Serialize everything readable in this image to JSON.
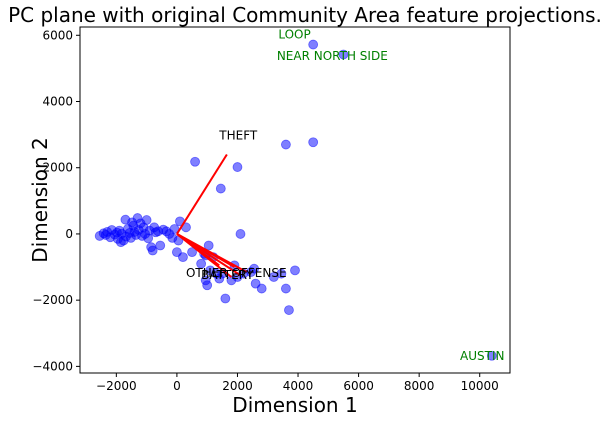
{
  "chart_data": {
    "type": "scatter",
    "title": "PC plane with original Community Area feature projections.",
    "xlabel": "Dimension 1",
    "ylabel": "Dimension 2",
    "xlim": [
      -3200,
      11000
    ],
    "ylim": [
      -4200,
      6250
    ],
    "xticks": [
      -2000,
      0,
      2000,
      4000,
      6000,
      8000,
      10000
    ],
    "yticks": [
      -4000,
      -2000,
      0,
      2000,
      4000,
      6000
    ],
    "grid": false,
    "point_color": "#0000ff",
    "vector_color": "#ff0000",
    "annotation_color": "#008000",
    "points": [
      [
        -2550,
        -60
      ],
      [
        -2420,
        20
      ],
      [
        -2350,
        -30
      ],
      [
        -2300,
        60
      ],
      [
        -2200,
        -100
      ],
      [
        -2150,
        120
      ],
      [
        -2050,
        -20
      ],
      [
        -1980,
        40
      ],
      [
        -1950,
        -150
      ],
      [
        -1900,
        100
      ],
      [
        -1850,
        -250
      ],
      [
        -1820,
        10
      ],
      [
        -1760,
        -200
      ],
      [
        -1700,
        430
      ],
      [
        -1680,
        -80
      ],
      [
        -1620,
        150
      ],
      [
        -1560,
        30
      ],
      [
        -1520,
        -120
      ],
      [
        -1480,
        350
      ],
      [
        -1440,
        250
      ],
      [
        -1400,
        60
      ],
      [
        -1350,
        -30
      ],
      [
        -1300,
        480
      ],
      [
        -1260,
        120
      ],
      [
        -1200,
        320
      ],
      [
        -1150,
        -60
      ],
      [
        -1100,
        200
      ],
      [
        -1050,
        0
      ],
      [
        -1000,
        420
      ],
      [
        -950,
        -130
      ],
      [
        -900,
        100
      ],
      [
        -850,
        -400
      ],
      [
        -800,
        -500
      ],
      [
        -750,
        200
      ],
      [
        -700,
        50
      ],
      [
        -620,
        80
      ],
      [
        -550,
        -350
      ],
      [
        -450,
        130
      ],
      [
        -350,
        80
      ],
      [
        -250,
        0
      ],
      [
        -150,
        -120
      ],
      [
        -80,
        150
      ],
      [
        0,
        -550
      ],
      [
        50,
        -200
      ],
      [
        100,
        380
      ],
      [
        200,
        -700
      ],
      [
        300,
        200
      ],
      [
        500,
        -550
      ],
      [
        800,
        -900
      ],
      [
        900,
        -600
      ],
      [
        950,
        -1400
      ],
      [
        1000,
        -1550
      ],
      [
        1100,
        -1100
      ],
      [
        1200,
        -700
      ],
      [
        1300,
        -1200
      ],
      [
        1400,
        -1350
      ],
      [
        1500,
        -1200
      ],
      [
        1600,
        -1950
      ],
      [
        1800,
        -1400
      ],
      [
        1900,
        -950
      ],
      [
        2000,
        -1300
      ],
      [
        2100,
        0
      ],
      [
        2200,
        -1200
      ],
      [
        2450,
        -1150
      ],
      [
        2550,
        -1050
      ],
      [
        2600,
        -1500
      ],
      [
        2800,
        -1650
      ],
      [
        3200,
        -1300
      ],
      [
        3450,
        -1200
      ],
      [
        3600,
        -1650
      ],
      [
        3700,
        -2300
      ],
      [
        3900,
        -1100
      ],
      [
        3600,
        2700
      ],
      [
        4500,
        2770
      ],
      [
        600,
        2180
      ],
      [
        2000,
        2020
      ],
      [
        1450,
        1370
      ],
      [
        4500,
        5720
      ],
      [
        5500,
        5420
      ],
      [
        10400,
        -3680
      ],
      [
        1050,
        -350
      ],
      [
        950,
        -650
      ]
    ],
    "feature_vectors": [
      {
        "label": "THEFT",
        "x": 1650,
        "y": 2400,
        "label_x": 1400,
        "label_y": 2850
      },
      {
        "label": "OTHER OFFENSE",
        "x": 2300,
        "y": -1150,
        "label_x": 300,
        "label_y": -1300
      },
      {
        "label": "BATTERY",
        "x": 1400,
        "y": -950,
        "label_x": 800,
        "label_y": -1360
      },
      {
        "label": "",
        "x": 1900,
        "y": -1000,
        "label_x": 0,
        "label_y": 0
      },
      {
        "label": "",
        "x": 2100,
        "y": -1250,
        "label_x": 0,
        "label_y": 0
      },
      {
        "label": "",
        "x": 1800,
        "y": -1300,
        "label_x": 0,
        "label_y": 0
      }
    ],
    "annotations": [
      {
        "text": "LOOP",
        "x": 3350,
        "y": 5900
      },
      {
        "text": "NEAR NORTH SIDE",
        "x": 3300,
        "y": 5250
      },
      {
        "text": "AUSTIN",
        "x": 9350,
        "y": -3800
      }
    ]
  }
}
